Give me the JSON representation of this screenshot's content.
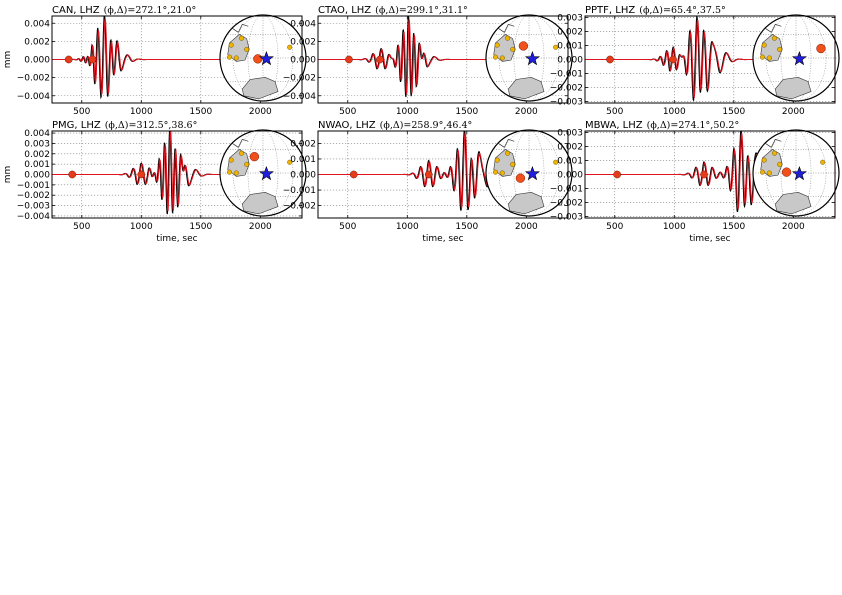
{
  "colors": {
    "observed": "#000000",
    "synthetic": "#e0141e",
    "pick_marker": "#e53b1a",
    "event_star": "#1f1fd9",
    "station_small": "#f0b400",
    "station_highlight": "#f0501a",
    "land": "#c8c8c8"
  },
  "chart_data": [
    {
      "type": "line",
      "title": "CAN, LHZ",
      "title_math": "(ϕ,Δ)=272.1°,21.0°",
      "xlabel": "",
      "ylabel": "mm",
      "xlim": [
        250,
        2350
      ],
      "ylim": [
        -0.0048,
        0.0048
      ],
      "xticks": [
        500,
        1000,
        1500,
        2000
      ],
      "xtick_labels": [
        "500",
        "1000",
        "1500",
        "2000"
      ],
      "yticks": [
        0.004,
        0.002,
        0.0,
        -0.002,
        -0.004
      ],
      "ytick_labels": [
        "0.004",
        "0.002",
        "0.000",
        "−0.002",
        "−0.004"
      ],
      "grid": true,
      "pick_markers_x": [
        390,
        590
      ],
      "wave": {
        "end": 1620,
        "packets": [
          [
            590,
            0.0009,
            40,
            55
          ],
          [
            690,
            0.0046,
            55,
            62
          ],
          [
            790,
            0.0012,
            95,
            75
          ]
        ]
      },
      "inset": {
        "big_dot": [
          -0.12,
          0.02
        ]
      }
    },
    {
      "type": "line",
      "title": "CTAO, LHZ",
      "title_math": "(ϕ,Δ)=299.1°,31.1°",
      "xlabel": "",
      "ylabel": "",
      "xlim": [
        250,
        2350
      ],
      "ylim": [
        -0.0048,
        0.0048
      ],
      "xticks": [
        500,
        1000,
        1500,
        2000
      ],
      "xtick_labels": [
        "500",
        "1000",
        "1500",
        "2000"
      ],
      "yticks": [
        0.004,
        0.002,
        0.0,
        -0.002,
        -0.004
      ],
      "ytick_labels": [
        "0.004",
        "0.002",
        "0.000",
        "−0.002",
        "−0.004"
      ],
      "grid": true,
      "pick_markers_x": [
        510,
        770
      ],
      "wave": {
        "end": 1580,
        "packets": [
          [
            780,
            0.0012,
            70,
            62
          ],
          [
            1010,
            0.0045,
            45,
            60
          ],
          [
            1120,
            0.0009,
            110,
            75
          ]
        ]
      },
      "inset": {
        "big_dot": [
          -0.13,
          -0.28
        ]
      }
    },
    {
      "type": "line",
      "title": "PPTF, LHZ",
      "title_math": "(ϕ,Δ)=65.4°,37.5°",
      "xlabel": "",
      "ylabel": "",
      "xlim": [
        250,
        2350
      ],
      "ylim": [
        -0.0031,
        0.0031
      ],
      "xticks": [
        500,
        1000,
        1500,
        2000
      ],
      "xtick_labels": [
        "500",
        "1000",
        "1500",
        "2000"
      ],
      "yticks": [
        0.003,
        0.002,
        0.001,
        0.0,
        -0.001,
        -0.002,
        -0.003
      ],
      "ytick_labels": [
        "0.003",
        "0.002",
        "0.001",
        "0.000",
        "−0.001",
        "−0.002",
        "−0.003"
      ],
      "grid": true,
      "pick_markers_x": [
        460,
        990
      ],
      "wave": {
        "end": 1800,
        "packets": [
          [
            990,
            0.0009,
            55,
            65
          ],
          [
            1190,
            0.0031,
            60,
            68
          ],
          [
            1330,
            0.0012,
            110,
            80
          ]
        ]
      },
      "inset": {
        "big_dot": [
          0.58,
          -0.22
        ]
      }
    },
    {
      "type": "line",
      "title": "PMG, LHZ",
      "title_math": "(ϕ,Δ)=312.5°,38.6°",
      "xlabel": "time, sec",
      "ylabel": "mm",
      "xlim": [
        250,
        2350
      ],
      "ylim": [
        -0.0042,
        0.0042
      ],
      "xticks": [
        500,
        1000,
        1500,
        2000
      ],
      "xtick_labels": [
        "500",
        "1000",
        "1500",
        "2000"
      ],
      "yticks": [
        0.004,
        0.003,
        0.002,
        0.001,
        0.0,
        -0.001,
        -0.002,
        -0.003,
        -0.004
      ],
      "ytick_labels": [
        "0.004",
        "0.003",
        "0.002",
        "0.001",
        "0.000",
        "−0.001",
        "−0.002",
        "−0.003",
        "−0.004"
      ],
      "grid": true,
      "pick_markers_x": [
        420,
        1000
      ],
      "wave": {
        "end": 1760,
        "packets": [
          [
            1000,
            0.0011,
            70,
            62
          ],
          [
            1240,
            0.0042,
            45,
            62
          ],
          [
            1350,
            0.0012,
            110,
            80
          ]
        ]
      },
      "inset": {
        "big_dot": [
          -0.2,
          -0.38
        ]
      }
    },
    {
      "type": "line",
      "title": "NWAO, LHZ",
      "title_math": "(ϕ,Δ)=258.9°,46.4°",
      "xlabel": "time, sec",
      "ylabel": "",
      "xlim": [
        250,
        2350
      ],
      "ylim": [
        -0.0028,
        0.0028
      ],
      "xticks": [
        500,
        1000,
        1500,
        2000
      ],
      "xtick_labels": [
        "500",
        "1000",
        "1500",
        "2000"
      ],
      "yticks": [
        0.002,
        0.001,
        0.0,
        -0.001,
        -0.002
      ],
      "ytick_labels": [
        "0.002",
        "0.001",
        "0.000",
        "−0.001",
        "−0.002"
      ],
      "grid": true,
      "pick_markers_x": [
        550,
        1180
      ],
      "wave": {
        "end": 1880,
        "packets": [
          [
            1180,
            0.0009,
            70,
            65
          ],
          [
            1480,
            0.0026,
            60,
            66
          ],
          [
            1610,
            0.0011,
            130,
            80
          ]
        ]
      },
      "inset": {
        "big_dot": [
          -0.2,
          0.12
        ]
      }
    },
    {
      "type": "line",
      "title": "MBWA, LHZ",
      "title_math": "(ϕ,Δ)=274.1°,50.2°",
      "xlabel": "time, sec",
      "ylabel": "",
      "xlim": [
        250,
        2350
      ],
      "ylim": [
        -0.0031,
        0.0031
      ],
      "xticks": [
        500,
        1000,
        1500,
        2000
      ],
      "xtick_labels": [
        "500",
        "1000",
        "1500",
        "2000"
      ],
      "yticks": [
        0.003,
        0.002,
        0.001,
        0.0,
        -0.001,
        -0.002,
        -0.003
      ],
      "ytick_labels": [
        "0.003",
        "0.002",
        "0.001",
        "0.000",
        "−0.001",
        "−0.002",
        "−0.003"
      ],
      "grid": true,
      "pick_markers_x": [
        520,
        1250
      ],
      "wave": {
        "end": 1880,
        "packets": [
          [
            1250,
            0.0009,
            70,
            65
          ],
          [
            1560,
            0.0029,
            60,
            66
          ],
          [
            1700,
            0.0015,
            130,
            80
          ]
        ]
      },
      "inset": {
        "big_dot": [
          -0.22,
          -0.02
        ]
      }
    }
  ]
}
